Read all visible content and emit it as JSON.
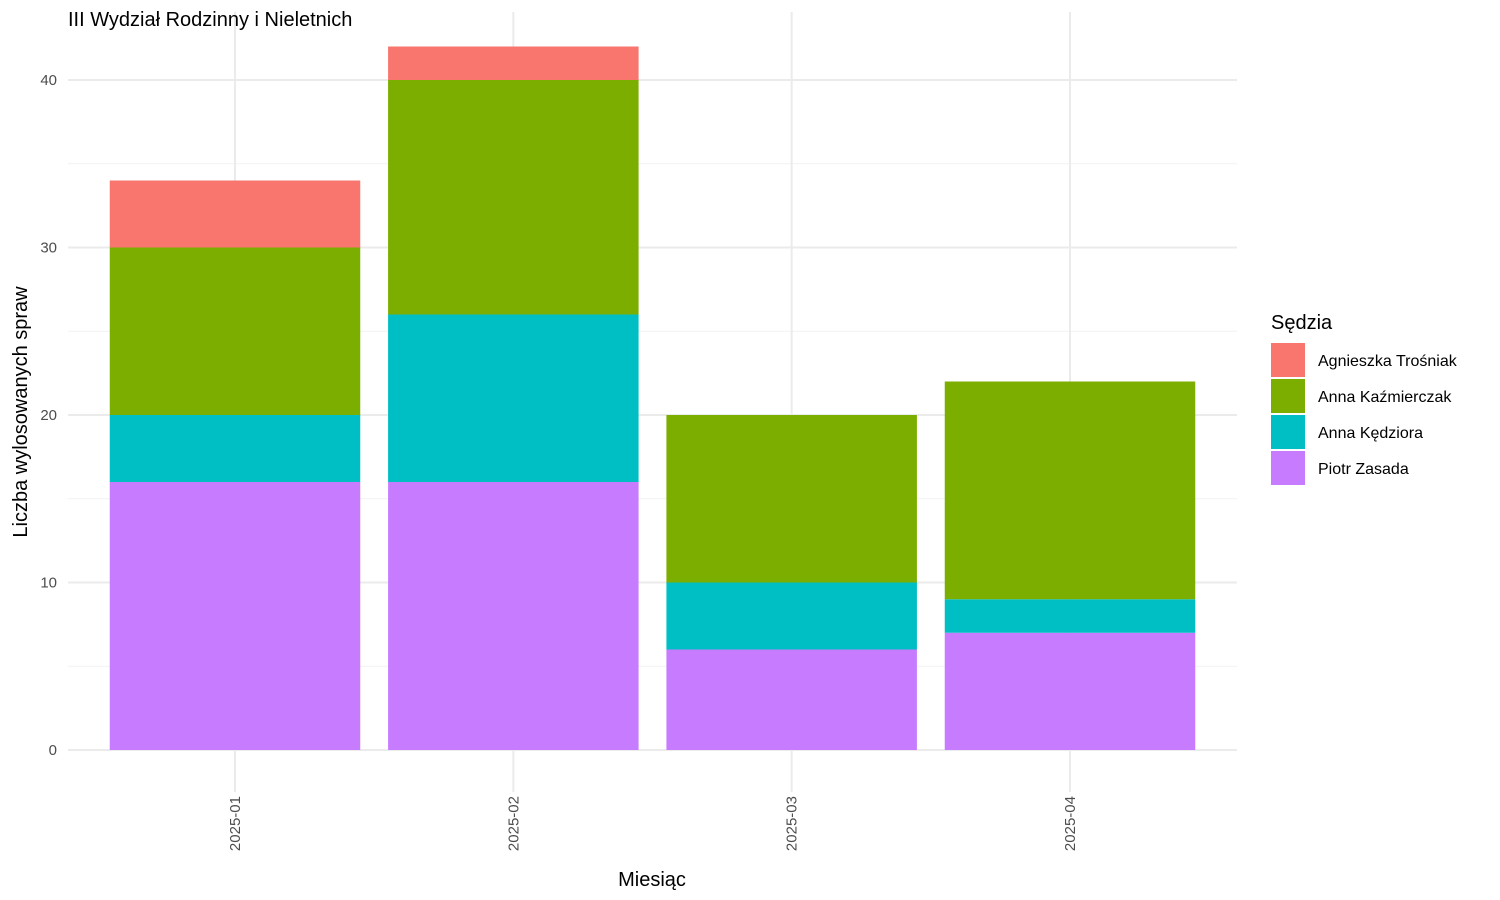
{
  "chart_data": {
    "type": "bar",
    "stacked": true,
    "title": "III Wydział Rodzinny i Nieletnich",
    "xlabel": "Miesiąc",
    "ylabel": "Liczba wylosowanych spraw",
    "ylim": [
      0,
      42
    ],
    "yticks": [
      "0",
      "10",
      "20",
      "30",
      "40"
    ],
    "categories": [
      "2025-01",
      "2025-02",
      "2025-03",
      "2025-04"
    ],
    "grid": true,
    "legend": {
      "title": "Sędzia",
      "position": "right"
    },
    "series": [
      {
        "name": "Piotr Zasada",
        "color": "#C77CFF",
        "values": [
          16,
          16,
          6,
          7
        ]
      },
      {
        "name": "Anna Kędziora",
        "color": "#00BFC4",
        "values": [
          4,
          10,
          4,
          2
        ]
      },
      {
        "name": "Anna Kaźmierczak",
        "color": "#7CAE00",
        "values": [
          10,
          14,
          10,
          13
        ]
      },
      {
        "name": "Agnieszka Trośniak",
        "color": "#F8766D",
        "values": [
          4,
          2,
          0,
          0
        ]
      }
    ],
    "legend_order": [
      "Agnieszka Trośniak",
      "Anna Kaźmierczak",
      "Anna Kędziora",
      "Piotr Zasada"
    ]
  }
}
